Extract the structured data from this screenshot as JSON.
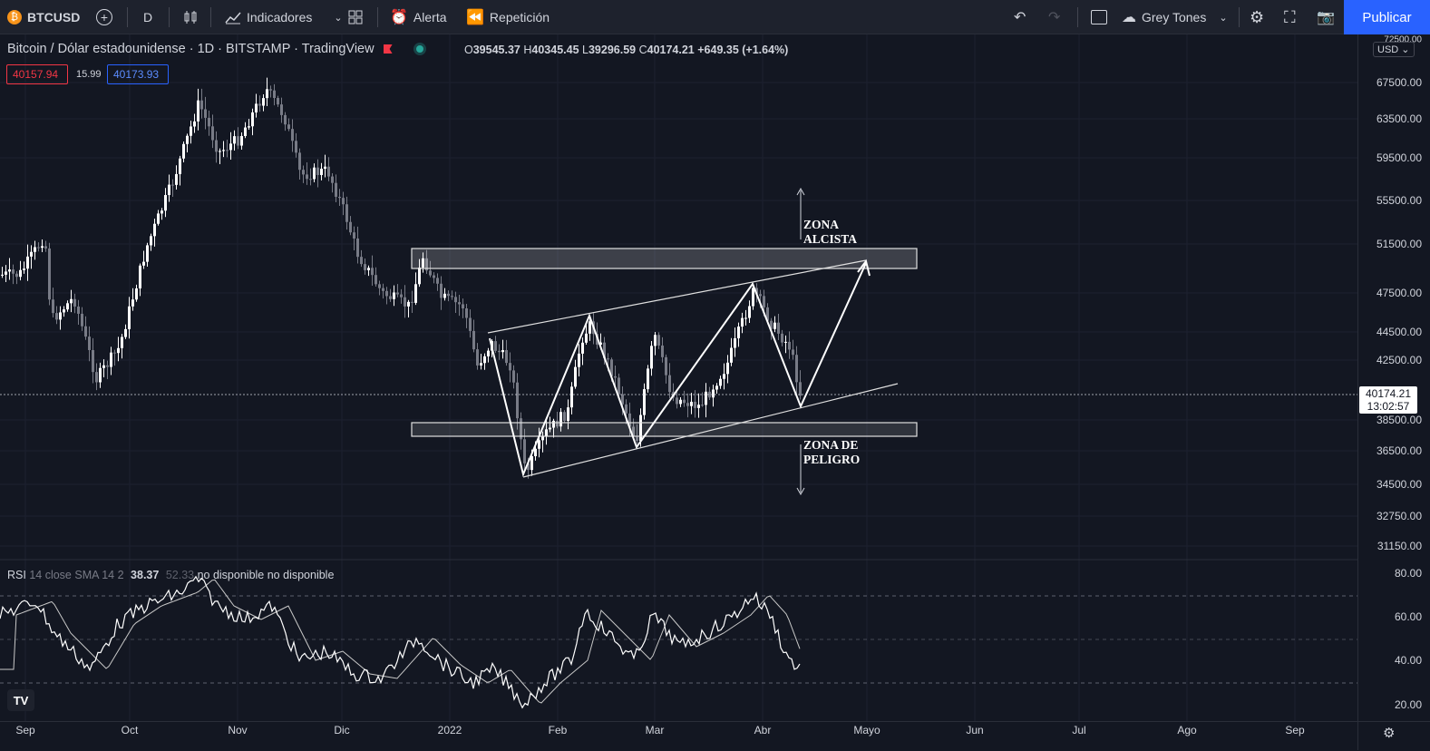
{
  "toolbar": {
    "symbol": "BTCUSD",
    "interval": "D",
    "indicators_label": "Indicadores",
    "alert_label": "Alerta",
    "replay_label": "Repetición",
    "theme_label": "Grey Tones",
    "publish_label": "Publicar"
  },
  "legend": {
    "title": "Bitcoin / Dólar estadounidense · 1D · BITSTAMP · TradingView",
    "open_key": "O",
    "open": "39545.37",
    "high_key": "H",
    "high": "40345.45",
    "low_key": "L",
    "low": "39296.59",
    "close_key": "C",
    "close": "40174.21",
    "change": "+649.35 (+1.64%)",
    "bid": "40157.94",
    "spread": "15.99",
    "ask": "40173.93"
  },
  "rsi": {
    "label": "RSI",
    "params": "14 close SMA 14 2",
    "value": "38.37",
    "value2": "52.33",
    "na1": "no disponible",
    "na2": "no disponible"
  },
  "price_axis": {
    "currency": "USD",
    "labels": [
      "72500.00",
      "67500.00",
      "63500.00",
      "59500.00",
      "55500.00",
      "51500.00",
      "47500.00",
      "44500.00",
      "42500.00",
      "38500.00",
      "36500.00",
      "34500.00",
      "32750.00",
      "31150.00"
    ],
    "current_price": "40174.21",
    "countdown": "13:02:57"
  },
  "rsi_axis": {
    "labels": [
      "80.00",
      "60.00",
      "40.00",
      "20.00"
    ]
  },
  "time_axis": {
    "labels": [
      "Sep",
      "Oct",
      "Nov",
      "Dic",
      "2022",
      "Feb",
      "Mar",
      "Abr",
      "Mayo",
      "Jun",
      "Jul",
      "Ago",
      "Sep"
    ]
  },
  "annotations": {
    "bull_zone": [
      "ZONA",
      "ALCISTA"
    ],
    "danger_zone": [
      "ZONA DE",
      "PELIGRO"
    ]
  },
  "logo": "TV",
  "colors": {
    "background": "#131722",
    "accent": "#2962ff",
    "candle_up": "#ffffff",
    "candle_down": "#787b86",
    "bid_red": "#f23645"
  }
}
